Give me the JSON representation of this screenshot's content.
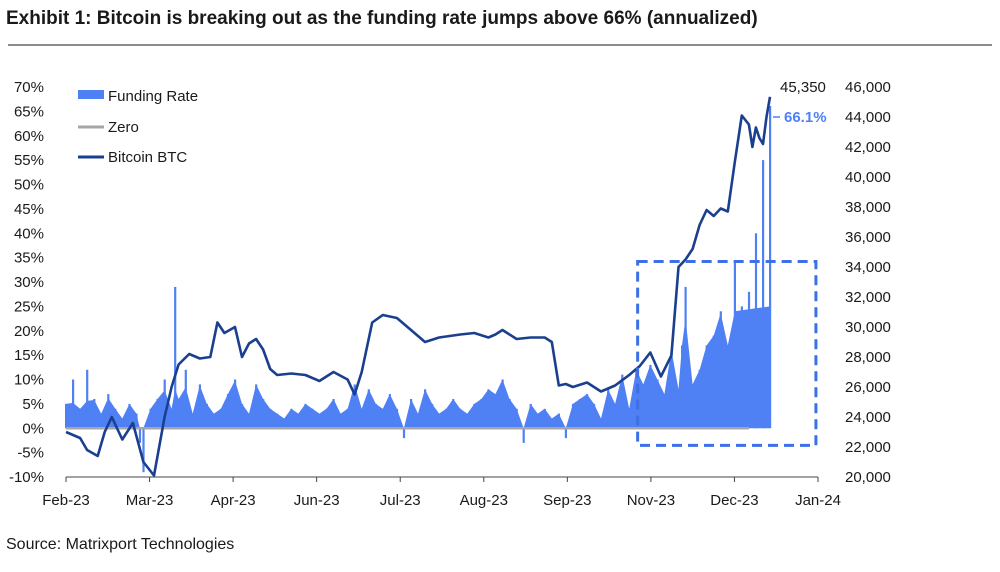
{
  "header": {
    "title": "Exhibit 1: Bitcoin is breaking out as the funding rate jumps above 66% (annualized)"
  },
  "footer": {
    "source": "Source: Matrixport Technologies"
  },
  "colors": {
    "funding": "#4f81f5",
    "zero": "#a6a6a6",
    "btc": "#1b3f8f",
    "dashed_box": "#3d6fe6",
    "rule": "#8c8c8c"
  },
  "chart_data": {
    "type": "bar",
    "title": "",
    "xlabel": "",
    "ylabel": "",
    "y_left_range": [
      -10,
      70
    ],
    "y_right_range": [
      20000,
      46000
    ],
    "y_left_ticks": [
      "-10%",
      "-5%",
      "0%",
      "5%",
      "10%",
      "15%",
      "20%",
      "25%",
      "30%",
      "35%",
      "40%",
      "45%",
      "50%",
      "55%",
      "60%",
      "65%",
      "70%"
    ],
    "y_right_ticks": [
      "20,000",
      "22,000",
      "24,000",
      "26,000",
      "28,000",
      "30,000",
      "32,000",
      "34,000",
      "36,000",
      "38,000",
      "40,000",
      "42,000",
      "44,000",
      "46,000"
    ],
    "x_ticks": [
      "Feb-23",
      "Mar-23",
      "Apr-23",
      "Jun-23",
      "Jul-23",
      "Aug-23",
      "Sep-23",
      "Nov-23",
      "Dec-23",
      "Jan-24"
    ],
    "legend": {
      "position": "top-left",
      "items": [
        "Funding Rate",
        "Zero",
        "Bitcoin BTC"
      ]
    },
    "annotations": {
      "btc_last": "45,350",
      "funding_last": "66.1%"
    },
    "highlight_box": {
      "x_range": [
        0.812,
        0.96
      ],
      "y_range_pct": [
        -3.5,
        34.2
      ]
    },
    "series": [
      {
        "name": "Funding Rate",
        "axis": "left",
        "type": "bar",
        "points": [
          [
            0.0,
            5
          ],
          [
            0.01,
            10
          ],
          [
            0.02,
            4
          ],
          [
            0.03,
            12
          ],
          [
            0.04,
            6
          ],
          [
            0.05,
            3
          ],
          [
            0.06,
            7
          ],
          [
            0.07,
            4
          ],
          [
            0.08,
            2
          ],
          [
            0.09,
            5
          ],
          [
            0.1,
            3
          ],
          [
            0.105,
            -3
          ],
          [
            0.11,
            -9
          ],
          [
            0.12,
            4
          ],
          [
            0.13,
            6
          ],
          [
            0.14,
            10
          ],
          [
            0.15,
            4
          ],
          [
            0.155,
            29
          ],
          [
            0.16,
            6
          ],
          [
            0.17,
            12
          ],
          [
            0.18,
            3
          ],
          [
            0.19,
            9
          ],
          [
            0.2,
            5
          ],
          [
            0.21,
            3
          ],
          [
            0.22,
            4
          ],
          [
            0.23,
            7
          ],
          [
            0.24,
            10
          ],
          [
            0.25,
            5
          ],
          [
            0.26,
            3
          ],
          [
            0.27,
            9
          ],
          [
            0.28,
            6
          ],
          [
            0.29,
            4
          ],
          [
            0.3,
            3
          ],
          [
            0.31,
            2
          ],
          [
            0.32,
            4
          ],
          [
            0.33,
            3
          ],
          [
            0.34,
            5
          ],
          [
            0.35,
            4
          ],
          [
            0.36,
            3
          ],
          [
            0.37,
            4
          ],
          [
            0.38,
            6
          ],
          [
            0.39,
            3
          ],
          [
            0.4,
            4
          ],
          [
            0.41,
            9
          ],
          [
            0.42,
            4
          ],
          [
            0.43,
            8
          ],
          [
            0.44,
            5
          ],
          [
            0.45,
            4
          ],
          [
            0.46,
            7
          ],
          [
            0.47,
            4
          ],
          [
            0.48,
            -2
          ],
          [
            0.49,
            6
          ],
          [
            0.5,
            3
          ],
          [
            0.51,
            8
          ],
          [
            0.52,
            5
          ],
          [
            0.53,
            3
          ],
          [
            0.54,
            4
          ],
          [
            0.55,
            6
          ],
          [
            0.56,
            4
          ],
          [
            0.57,
            3
          ],
          [
            0.58,
            5
          ],
          [
            0.59,
            6
          ],
          [
            0.6,
            8
          ],
          [
            0.61,
            7
          ],
          [
            0.62,
            10
          ],
          [
            0.63,
            6
          ],
          [
            0.64,
            4
          ],
          [
            0.65,
            -3
          ],
          [
            0.66,
            5
          ],
          [
            0.67,
            3
          ],
          [
            0.68,
            4
          ],
          [
            0.69,
            2
          ],
          [
            0.7,
            3
          ],
          [
            0.71,
            -2
          ],
          [
            0.72,
            5
          ],
          [
            0.73,
            6
          ],
          [
            0.74,
            7
          ],
          [
            0.75,
            5
          ],
          [
            0.76,
            2
          ],
          [
            0.77,
            8
          ],
          [
            0.78,
            5
          ],
          [
            0.79,
            11
          ],
          [
            0.8,
            4
          ],
          [
            0.81,
            12
          ],
          [
            0.82,
            9
          ],
          [
            0.83,
            13
          ],
          [
            0.84,
            10
          ],
          [
            0.85,
            7
          ],
          [
            0.86,
            16
          ],
          [
            0.87,
            8
          ],
          [
            0.875,
            17
          ],
          [
            0.88,
            29
          ],
          [
            0.89,
            9
          ],
          [
            0.9,
            12
          ],
          [
            0.91,
            17
          ],
          [
            0.92,
            19
          ],
          [
            0.93,
            24
          ],
          [
            0.94,
            17
          ],
          [
            0.95,
            34
          ],
          [
            0.96,
            25
          ],
          [
            0.97,
            28
          ],
          [
            0.98,
            40
          ],
          [
            0.99,
            55
          ],
          [
            1.0,
            66.1
          ]
        ]
      },
      {
        "name": "Zero",
        "axis": "left",
        "type": "line",
        "value": 0
      },
      {
        "name": "Bitcoin BTC",
        "axis": "right",
        "type": "line",
        "points": [
          [
            0.0,
            23000
          ],
          [
            0.02,
            22600
          ],
          [
            0.03,
            21800
          ],
          [
            0.045,
            21400
          ],
          [
            0.055,
            23000
          ],
          [
            0.065,
            24000
          ],
          [
            0.08,
            22500
          ],
          [
            0.095,
            23600
          ],
          [
            0.11,
            21000
          ],
          [
            0.125,
            20100
          ],
          [
            0.14,
            24000
          ],
          [
            0.15,
            26000
          ],
          [
            0.16,
            27500
          ],
          [
            0.175,
            28200
          ],
          [
            0.19,
            27900
          ],
          [
            0.205,
            28000
          ],
          [
            0.215,
            30300
          ],
          [
            0.225,
            29600
          ],
          [
            0.24,
            30000
          ],
          [
            0.25,
            28000
          ],
          [
            0.26,
            28900
          ],
          [
            0.27,
            29200
          ],
          [
            0.28,
            28500
          ],
          [
            0.29,
            27200
          ],
          [
            0.3,
            26800
          ],
          [
            0.32,
            26900
          ],
          [
            0.34,
            26800
          ],
          [
            0.36,
            26400
          ],
          [
            0.38,
            27000
          ],
          [
            0.4,
            26500
          ],
          [
            0.41,
            25500
          ],
          [
            0.42,
            27000
          ],
          [
            0.435,
            30300
          ],
          [
            0.45,
            30800
          ],
          [
            0.47,
            30600
          ],
          [
            0.49,
            29800
          ],
          [
            0.5,
            29400
          ],
          [
            0.51,
            29000
          ],
          [
            0.53,
            29300
          ],
          [
            0.56,
            29500
          ],
          [
            0.58,
            29600
          ],
          [
            0.6,
            29300
          ],
          [
            0.61,
            29500
          ],
          [
            0.62,
            29800
          ],
          [
            0.64,
            29200
          ],
          [
            0.66,
            29300
          ],
          [
            0.68,
            29300
          ],
          [
            0.69,
            29000
          ],
          [
            0.7,
            26100
          ],
          [
            0.71,
            26200
          ],
          [
            0.72,
            26000
          ],
          [
            0.74,
            26300
          ],
          [
            0.76,
            25700
          ],
          [
            0.78,
            26100
          ],
          [
            0.8,
            26800
          ],
          [
            0.815,
            27400
          ],
          [
            0.83,
            28300
          ],
          [
            0.845,
            26700
          ],
          [
            0.86,
            28100
          ],
          [
            0.87,
            34000
          ],
          [
            0.88,
            34500
          ],
          [
            0.89,
            35200
          ],
          [
            0.9,
            36800
          ],
          [
            0.91,
            37800
          ],
          [
            0.92,
            37400
          ],
          [
            0.93,
            37900
          ],
          [
            0.94,
            37700
          ],
          [
            0.95,
            41000
          ],
          [
            0.96,
            44100
          ],
          [
            0.97,
            43500
          ],
          [
            0.975,
            42000
          ],
          [
            0.98,
            43300
          ],
          [
            0.985,
            42600
          ],
          [
            0.99,
            42200
          ],
          [
            0.995,
            44000
          ],
          [
            1.0,
            45350
          ]
        ]
      }
    ]
  }
}
